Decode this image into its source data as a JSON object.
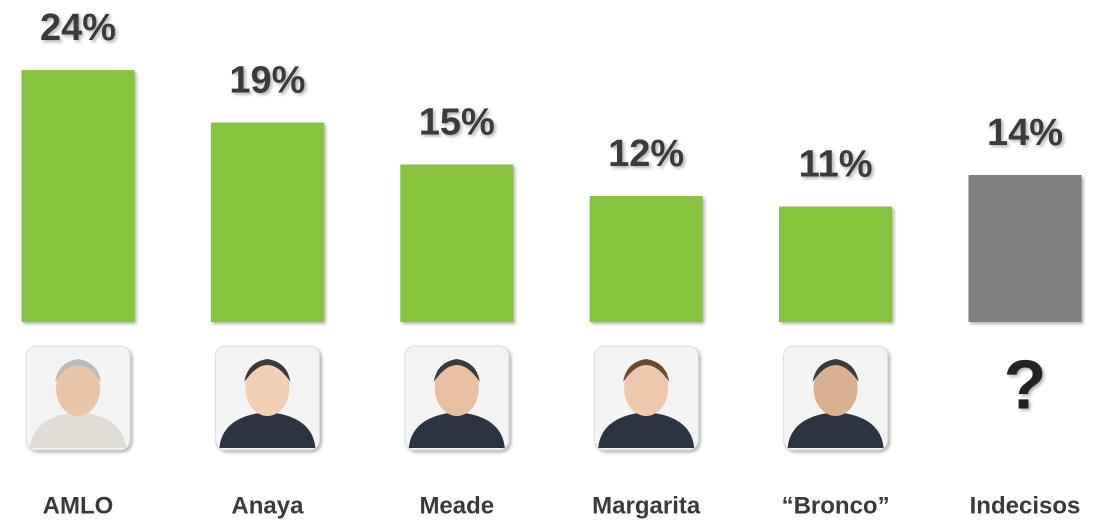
{
  "chart_data": {
    "type": "bar",
    "categories": [
      "AMLO",
      "Anaya",
      "Meade",
      "Margarita",
      "“Bronco”",
      "Indecisos"
    ],
    "values": [
      24,
      19,
      15,
      12,
      11,
      14
    ],
    "value_labels": [
      "24%",
      "19%",
      "15%",
      "12%",
      "11%",
      "14%"
    ],
    "colors": [
      "#86c43e",
      "#86c43e",
      "#86c43e",
      "#86c43e",
      "#86c43e",
      "#808080"
    ],
    "unknown_icon": "?"
  }
}
